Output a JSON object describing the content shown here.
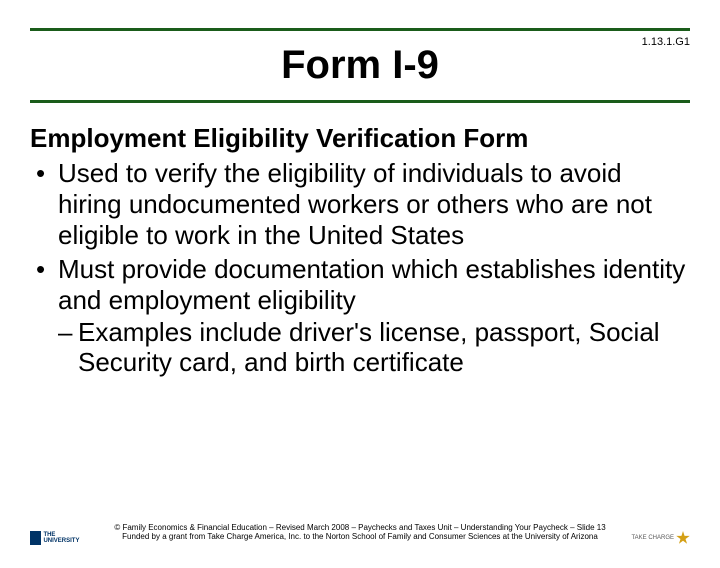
{
  "slide_number": "1.13.1.G1",
  "title_border_color": "#1a5c1a",
  "title": "Form I-9",
  "subheading": "Employment Eligibility Verification Form",
  "bullets": {
    "b1": "Used to verify the eligibility of individuals to avoid hiring undocumented workers or others who are not eligible to work in the United States",
    "b2": "Must provide documentation which establishes identity and employment eligibility"
  },
  "sub_bullet": "Examples include driver's license, passport, Social Security card, and birth certificate",
  "footer": {
    "line1": "© Family Economics & Financial Education – Revised March 2008 – Paychecks and Taxes Unit – Understanding Your Paycheck – Slide 13",
    "line2": "Funded by a grant from Take Charge America, Inc. to the Norton School of Family and Consumer Sciences at the University of Arizona"
  },
  "logos": {
    "left_label": "THE UNIVERSITY",
    "right_label": "TAKE CHARGE"
  },
  "colors": {
    "text": "#000000",
    "background": "#ffffff",
    "border": "#1a5c1a",
    "ua_blue": "#003366",
    "star_gold": "#d4a017"
  },
  "fonts": {
    "title_size": 40,
    "body_size": 26,
    "footer_size": 8
  }
}
